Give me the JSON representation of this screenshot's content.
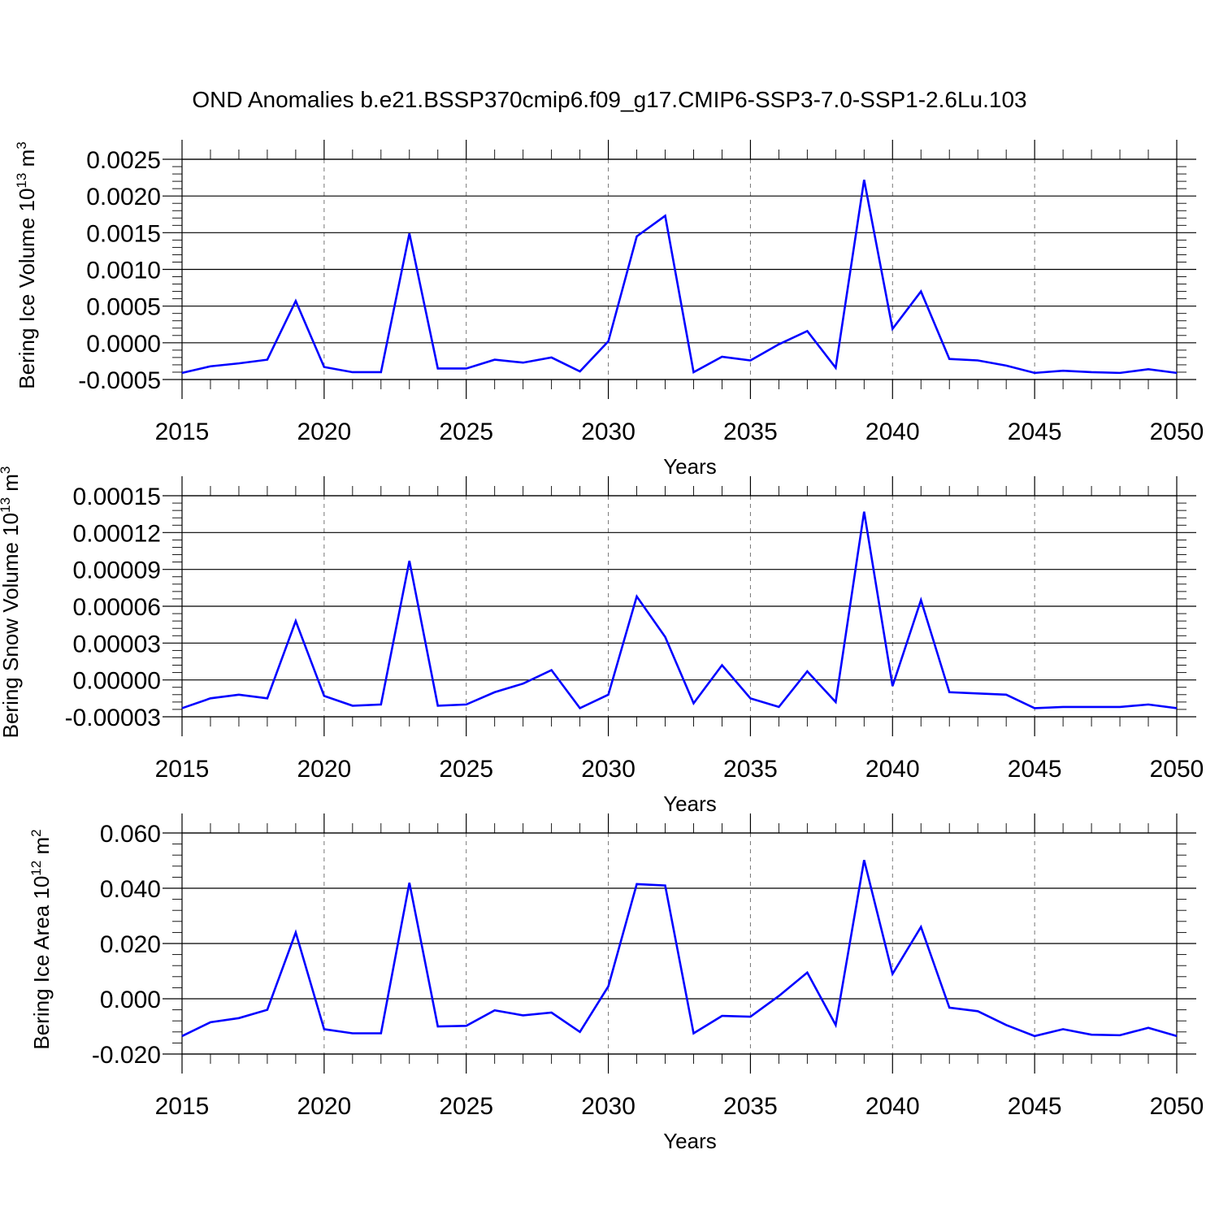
{
  "title": "OND Anomalies b.e21.BSSP370cmip6.f09_g17.CMIP6-SSP3-7.0-SSP1-2.6Lu.103",
  "colors": {
    "line": "#0000ff",
    "grid": "#777777",
    "axis": "#000000"
  },
  "chart_data": [
    {
      "type": "line",
      "title": "OND Anomalies b.e21.BSSP370cmip6.f09_g17.CMIP6-SSP3-7.0-SSP1-2.6Lu.103",
      "xlabel": "Years",
      "ylabel": {
        "text": "Bering Ice Volume 10",
        "exp": "13",
        "unit": " m",
        "unit_exp": "3"
      },
      "xlim": [
        2015,
        2050
      ],
      "ylim": [
        -0.0005,
        0.0025
      ],
      "xticks": [
        2015,
        2020,
        2025,
        2030,
        2035,
        2040,
        2045,
        2050
      ],
      "xtick_labels": [
        "2015",
        "2020",
        "2025",
        "2030",
        "2035",
        "2040",
        "2045",
        "2050"
      ],
      "yticks": [
        -0.0005,
        0.0,
        0.0005,
        0.001,
        0.0015,
        0.002,
        0.0025
      ],
      "ytick_labels": [
        "-0.0005",
        "0.0000",
        "0.0005",
        "0.0010",
        "0.0015",
        "0.0020",
        "0.0025"
      ],
      "x": [
        2015,
        2016,
        2017,
        2018,
        2019,
        2020,
        2021,
        2022,
        2023,
        2024,
        2025,
        2026,
        2027,
        2028,
        2029,
        2030,
        2031,
        2032,
        2033,
        2034,
        2035,
        2036,
        2037,
        2038,
        2039,
        2040,
        2041,
        2042,
        2043,
        2044,
        2045,
        2046,
        2047,
        2048,
        2049,
        2050
      ],
      "series": [
        {
          "name": "Bering Ice Volume",
          "values": [
            -0.00041,
            -0.00032,
            -0.00028,
            -0.00023,
            0.00057,
            -0.00033,
            -0.0004,
            -0.0004,
            0.00149,
            -0.00035,
            -0.00035,
            -0.00023,
            -0.00027,
            -0.0002,
            -0.00039,
            2e-05,
            0.00145,
            0.00173,
            -0.0004,
            -0.00019,
            -0.00024,
            -2e-05,
            0.00016,
            -0.00034,
            0.00222,
            0.00019,
            0.0007,
            -0.00022,
            -0.00024,
            -0.00031,
            -0.00041,
            -0.00038,
            -0.0004,
            -0.00041,
            -0.00036,
            -0.00041
          ]
        }
      ]
    },
    {
      "type": "line",
      "xlabel": "Years",
      "ylabel": {
        "text": "Bering Snow Volume 10",
        "exp": "13",
        "unit": " m",
        "unit_exp": "3"
      },
      "xlim": [
        2015,
        2050
      ],
      "ylim": [
        -3e-05,
        0.00015
      ],
      "xticks": [
        2015,
        2020,
        2025,
        2030,
        2035,
        2040,
        2045,
        2050
      ],
      "xtick_labels": [
        "2015",
        "2020",
        "2025",
        "2030",
        "2035",
        "2040",
        "2045",
        "2050"
      ],
      "yticks": [
        -3e-05,
        0.0,
        3e-05,
        6e-05,
        9e-05,
        0.00012,
        0.00015
      ],
      "ytick_labels": [
        "-0.00003",
        "0.00000",
        "0.00003",
        "0.00006",
        "0.00009",
        "0.00012",
        "0.00015"
      ],
      "x": [
        2015,
        2016,
        2017,
        2018,
        2019,
        2020,
        2021,
        2022,
        2023,
        2024,
        2025,
        2026,
        2027,
        2028,
        2029,
        2030,
        2031,
        2032,
        2033,
        2034,
        2035,
        2036,
        2037,
        2038,
        2039,
        2040,
        2041,
        2042,
        2043,
        2044,
        2045,
        2046,
        2047,
        2048,
        2049,
        2050
      ],
      "series": [
        {
          "name": "Bering Snow Volume",
          "values": [
            -2.3e-05,
            -1.5e-05,
            -1.2e-05,
            -1.5e-05,
            4.8e-05,
            -1.3e-05,
            -2.1e-05,
            -2e-05,
            9.7e-05,
            -2.1e-05,
            -2e-05,
            -1e-05,
            -3e-06,
            8e-06,
            -2.3e-05,
            -1.2e-05,
            6.8e-05,
            3.5e-05,
            -1.9e-05,
            1.2e-05,
            -1.5e-05,
            -2.2e-05,
            7e-06,
            -1.8e-05,
            0.000137,
            -5e-06,
            6.5e-05,
            -1e-05,
            -1.1e-05,
            -1.2e-05,
            -2.3e-05,
            -2.2e-05,
            -2.2e-05,
            -2.2e-05,
            -2e-05,
            -2.3e-05
          ]
        }
      ]
    },
    {
      "type": "line",
      "xlabel": "Years",
      "ylabel": {
        "text": "Bering Ice Area 10",
        "exp": "12",
        "unit": " m",
        "unit_exp": "2"
      },
      "xlim": [
        2015,
        2050
      ],
      "ylim": [
        -0.02,
        0.06
      ],
      "xticks": [
        2015,
        2020,
        2025,
        2030,
        2035,
        2040,
        2045,
        2050
      ],
      "xtick_labels": [
        "2015",
        "2020",
        "2025",
        "2030",
        "2035",
        "2040",
        "2045",
        "2050"
      ],
      "yticks": [
        -0.02,
        0.0,
        0.02,
        0.04,
        0.06
      ],
      "ytick_labels": [
        "-0.020",
        "0.000",
        "0.020",
        "0.040",
        "0.060"
      ],
      "x": [
        2015,
        2016,
        2017,
        2018,
        2019,
        2020,
        2021,
        2022,
        2023,
        2024,
        2025,
        2026,
        2027,
        2028,
        2029,
        2030,
        2031,
        2032,
        2033,
        2034,
        2035,
        2036,
        2037,
        2038,
        2039,
        2040,
        2041,
        2042,
        2043,
        2044,
        2045,
        2046,
        2047,
        2048,
        2049,
        2050
      ],
      "series": [
        {
          "name": "Bering Ice Area",
          "values": [
            -0.0135,
            -0.0085,
            -0.007,
            -0.004,
            0.024,
            -0.011,
            -0.0125,
            -0.0125,
            0.042,
            -0.01,
            -0.0098,
            -0.0042,
            -0.006,
            -0.005,
            -0.012,
            0.0045,
            0.0415,
            0.041,
            -0.0125,
            -0.0062,
            -0.0065,
            0.001,
            0.0095,
            -0.0095,
            0.0502,
            0.009,
            0.026,
            -0.0032,
            -0.0045,
            -0.0095,
            -0.0135,
            -0.011,
            -0.013,
            -0.0132,
            -0.0105,
            -0.0135
          ]
        }
      ]
    }
  ]
}
